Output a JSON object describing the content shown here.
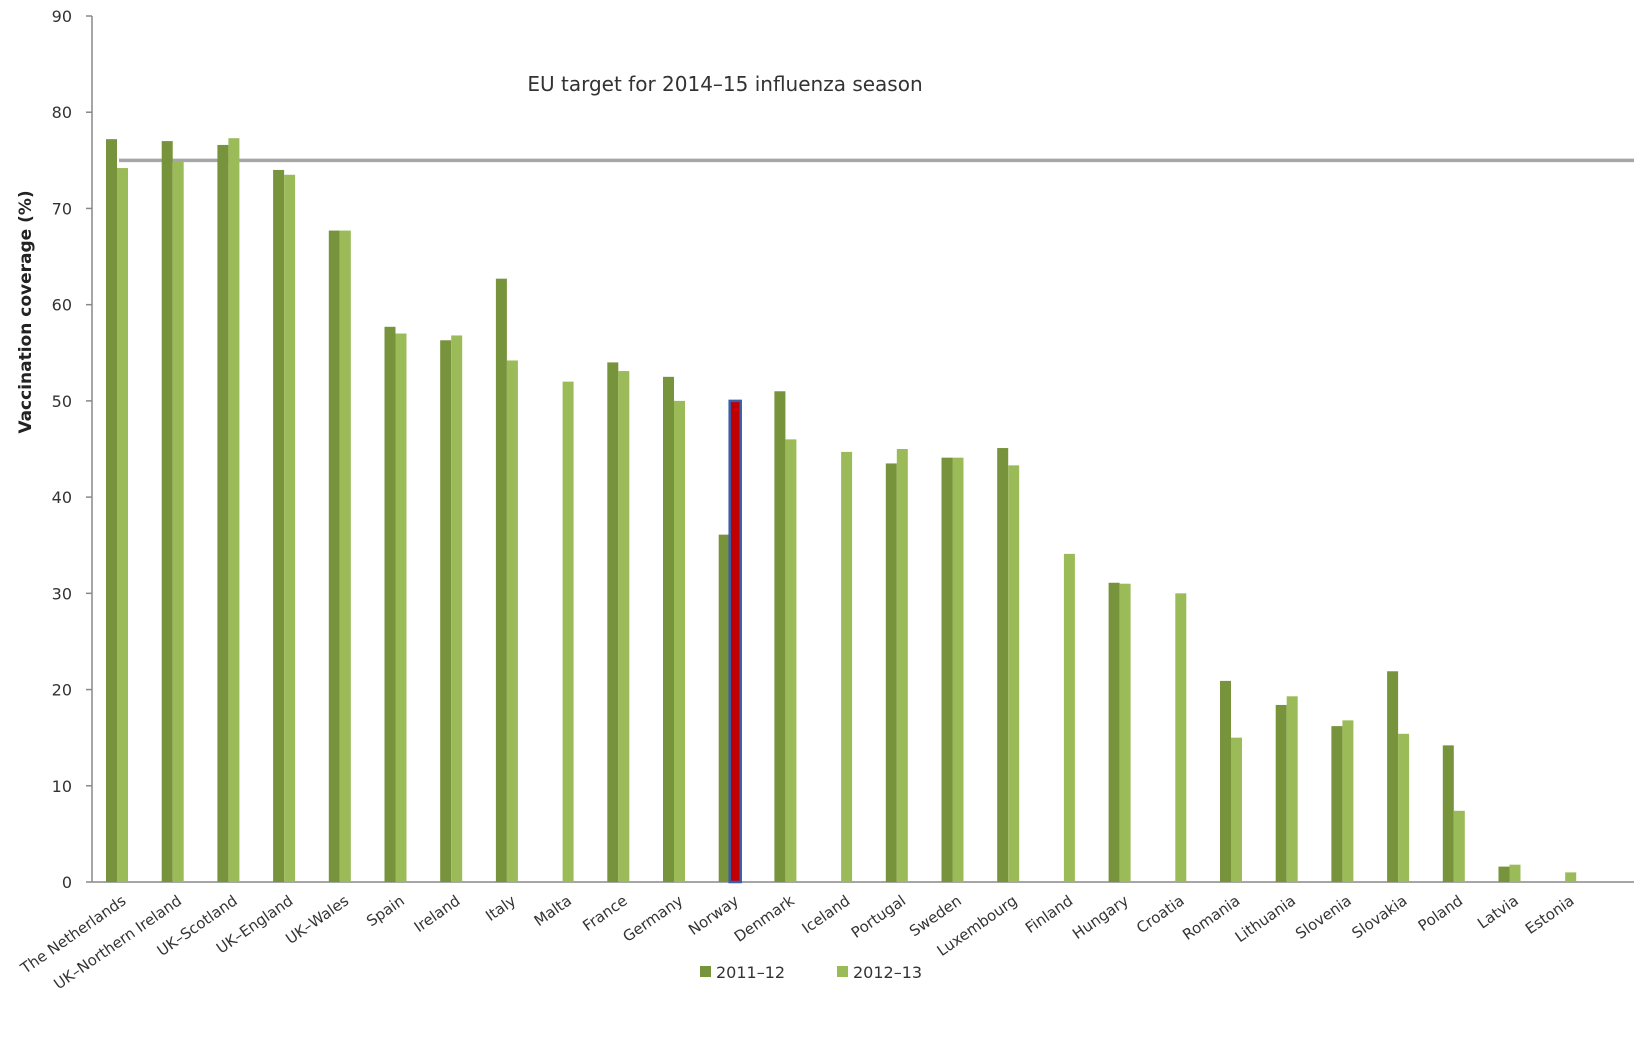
{
  "chart_data": {
    "type": "bar",
    "ylabel": "Vaccination coverage (%)",
    "ylim": [
      0,
      90
    ],
    "yticks": [
      0,
      10,
      20,
      30,
      40,
      50,
      60,
      70,
      80,
      90
    ],
    "grid": false,
    "legend_position": "bottom",
    "annotation": {
      "text": "EU target for 2014–15 influenza season",
      "value": 75
    },
    "categories": [
      "The Netherlands",
      "UK–Northern Ireland",
      "UK–Scotland",
      "UK–England",
      "UK–Wales",
      "Spain",
      "Ireland",
      "Italy",
      "Malta",
      "France",
      "Germany",
      "Norway",
      "Denmark",
      "Iceland",
      "Portugal",
      "Sweden",
      "Luxembourg",
      "Finland",
      "Hungary",
      "Croatia",
      "Romania",
      "Lithuania",
      "Slovenia",
      "Slovakia",
      "Poland",
      "Latvia",
      "Estonia"
    ],
    "series": [
      {
        "name": "2011–12",
        "color": "#77933c",
        "values": [
          77.2,
          77.0,
          76.6,
          74.0,
          67.7,
          57.7,
          56.3,
          62.7,
          null,
          54.0,
          52.5,
          36.1,
          51.0,
          null,
          43.5,
          44.1,
          45.1,
          null,
          31.1,
          null,
          20.9,
          18.4,
          16.2,
          21.9,
          14.2,
          1.6,
          null
        ]
      },
      {
        "name": "2012–13",
        "color": "#9bbb59",
        "values": [
          74.2,
          74.9,
          77.3,
          73.5,
          67.7,
          57.0,
          56.8,
          54.2,
          52.0,
          53.1,
          50.0,
          50.0,
          46.0,
          44.7,
          45.0,
          44.1,
          43.3,
          34.1,
          31.0,
          30.0,
          15.0,
          19.3,
          16.8,
          15.4,
          7.4,
          1.8,
          1.0
        ]
      }
    ],
    "highlight": {
      "category": "Norway",
      "series": "2012–13",
      "color": "#c00000",
      "border": "#3b5dab"
    },
    "reference_line_color": "#a6a6a6"
  }
}
